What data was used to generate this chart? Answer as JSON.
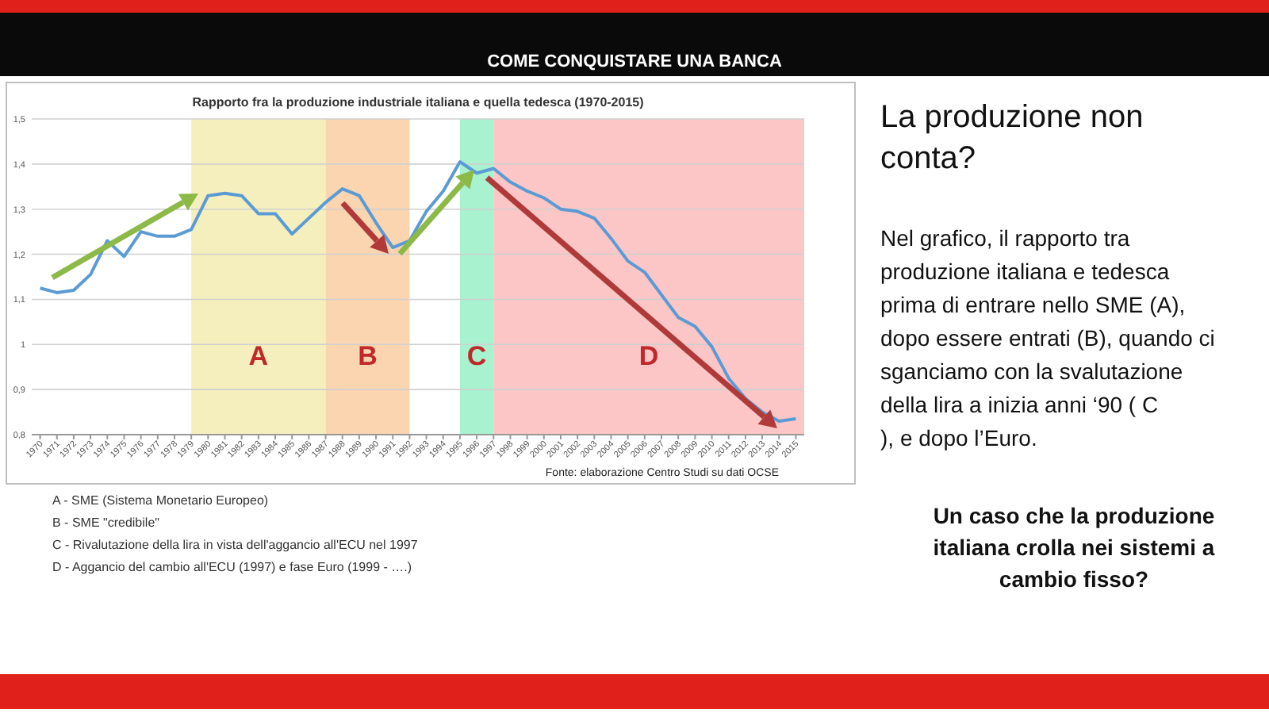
{
  "chart_data": {
    "type": "line",
    "title": "Rapporto fra la produzione industriale italiana e quella tedesca (1970-2015)",
    "x": [
      1970,
      1971,
      1972,
      1973,
      1974,
      1975,
      1976,
      1977,
      1978,
      1979,
      1980,
      1981,
      1982,
      1983,
      1984,
      1985,
      1986,
      1987,
      1988,
      1989,
      1990,
      1991,
      1992,
      1993,
      1994,
      1995,
      1996,
      1997,
      1998,
      1999,
      2000,
      2001,
      2002,
      2003,
      2004,
      2005,
      2006,
      2007,
      2008,
      2009,
      2010,
      2011,
      2012,
      2013,
      2014,
      2015
    ],
    "series": [
      {
        "color": "#5b9bd5",
        "values": [
          1.125,
          1.115,
          1.12,
          1.155,
          1.23,
          1.195,
          1.25,
          1.24,
          1.24,
          1.255,
          1.33,
          1.335,
          1.33,
          1.29,
          1.29,
          1.245,
          1.28,
          1.315,
          1.345,
          1.33,
          1.27,
          1.215,
          1.23,
          1.295,
          1.34,
          1.405,
          1.38,
          1.39,
          1.36,
          1.34,
          1.325,
          1.3,
          1.295,
          1.28,
          1.235,
          1.185,
          1.16,
          1.11,
          1.06,
          1.04,
          0.995,
          0.925,
          0.88,
          0.85,
          0.83,
          0.835
        ]
      }
    ],
    "xlim": [
      1969.5,
      2015.5
    ],
    "xticks": [
      1970,
      1971,
      1972,
      1973,
      1974,
      1975,
      1976,
      1977,
      1978,
      1979,
      1980,
      1981,
      1982,
      1983,
      1984,
      1985,
      1986,
      1987,
      1988,
      1989,
      1990,
      1991,
      1992,
      1993,
      1994,
      1995,
      1996,
      1997,
      1998,
      1999,
      2000,
      2001,
      2002,
      2003,
      2004,
      2005,
      2006,
      2007,
      2008,
      2009,
      2010,
      2011,
      2012,
      2013,
      2014,
      2015
    ],
    "ylim": [
      0.8,
      1.5
    ],
    "yticks": [
      {
        "value": 0.8,
        "label": "0,8"
      },
      {
        "value": 0.9,
        "label": "0,9"
      },
      {
        "value": 1,
        "label": "1"
      },
      {
        "value": 1.1,
        "label": "1,1"
      },
      {
        "value": 1.2,
        "label": "1,2"
      },
      {
        "value": 1.3,
        "label": "1,3"
      },
      {
        "value": 1.4,
        "label": "1,4"
      },
      {
        "value": 1.5,
        "label": "1,5"
      }
    ],
    "grid": "y",
    "marker": "none",
    "line_style": "solid",
    "bands": [
      {
        "axis": "x",
        "from": 1979,
        "to": 1987,
        "label": "A",
        "color": "#f5efbd"
      },
      {
        "axis": "x",
        "from": 1987,
        "to": 1992,
        "label": "B",
        "color": "#fbd4b0"
      },
      {
        "axis": "x",
        "from": 1995,
        "to": 1997,
        "label": "C",
        "color": "#a8f2d0"
      },
      {
        "axis": "x",
        "from": 1997,
        "to": 2015.5,
        "label": "D",
        "color": "#fcc6c6"
      }
    ],
    "annotations": [
      "COME CONQUISTARE UNA BANCA",
      "Fonte: elaborazione Centro Studi su dati OCSE",
      "A - SME (Sistema Monetario Europeo)",
      "B - SME \"credibile\"",
      "C - Rivalutazione della lira in vista dell'aggancio all'ECU nel 1997",
      "D - Aggancio del cambio all'ECU (1997) e fase Euro (1999 - ….)",
      "La produzione non conta?",
      "Nel grafico, il rapporto tra produzione italiana e tedesca prima di entrare nello SME (A), dopo essere entrati (B), quando ci sganciamo con la svalutazione della lira a inizia anni ‘90 ( C ), e dopo l’Euro.",
      "Un caso che la produzione italiana crolla nei sistemi a cambio fisso?"
    ]
  }
}
